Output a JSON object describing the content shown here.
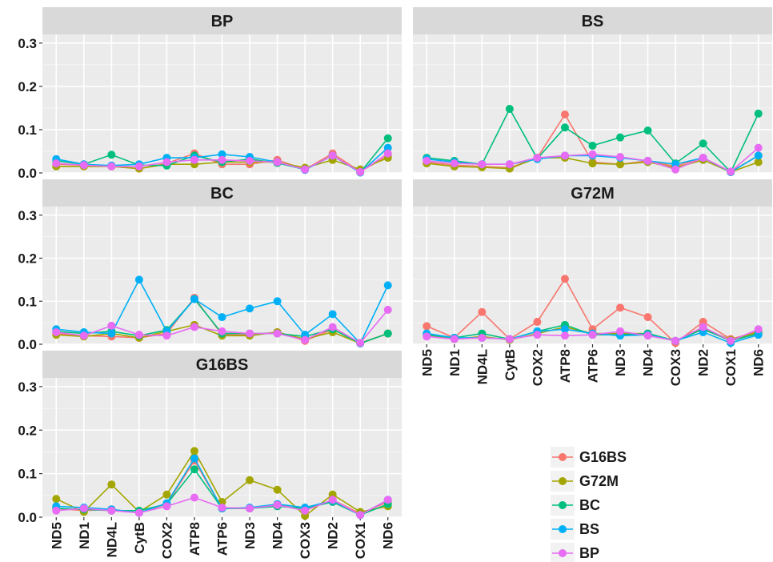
{
  "chart_data": {
    "type": "line",
    "layout": "facet-grid",
    "categories": [
      "ND5",
      "ND1",
      "ND4L",
      "CytB",
      "COX2",
      "ATP8",
      "ATP6",
      "ND3",
      "ND4",
      "COX3",
      "ND2",
      "COX1",
      "ND6"
    ],
    "ylim": [
      0,
      0.32
    ],
    "yticks": [
      0.0,
      0.1,
      0.2,
      0.3
    ],
    "ytick_labels": [
      "0.0",
      "0.1",
      "0.2",
      "0.3"
    ],
    "grid": true,
    "legend_position": "bottom-right",
    "legend": [
      {
        "name": "G16BS",
        "color": "#F8766D"
      },
      {
        "name": "G72M",
        "color": "#A3A500"
      },
      {
        "name": "BC",
        "color": "#00BF7D"
      },
      {
        "name": "BS",
        "color": "#00B0F6"
      },
      {
        "name": "BP",
        "color": "#E76BF3"
      }
    ],
    "panels": [
      {
        "title": "BP",
        "series": [
          {
            "name": "G16BS",
            "values": [
              0.02,
              0.018,
              0.015,
              0.01,
              0.022,
              0.045,
              0.02,
              0.02,
              0.03,
              0.008,
              0.045,
              0.003,
              0.04
            ]
          },
          {
            "name": "G72M",
            "values": [
              0.015,
              0.015,
              0.015,
              0.01,
              0.02,
              0.02,
              0.025,
              0.025,
              0.025,
              0.012,
              0.03,
              0.008,
              0.035
            ]
          },
          {
            "name": "BC",
            "values": [
              0.028,
              0.02,
              0.042,
              0.018,
              0.017,
              0.04,
              0.025,
              0.032,
              0.023,
              0.008,
              0.04,
              0.001,
              0.08
            ]
          },
          {
            "name": "BS",
            "values": [
              0.032,
              0.02,
              0.017,
              0.02,
              0.035,
              0.035,
              0.043,
              0.037,
              0.025,
              0.007,
              0.04,
              0.001,
              0.058
            ]
          },
          {
            "name": "BP",
            "values": [
              0.022,
              0.018,
              0.015,
              0.015,
              0.025,
              0.03,
              0.03,
              0.028,
              0.025,
              0.008,
              0.04,
              0.002,
              0.045
            ]
          }
        ]
      },
      {
        "title": "BS",
        "series": [
          {
            "name": "G16BS",
            "values": [
              0.025,
              0.018,
              0.015,
              0.012,
              0.035,
              0.135,
              0.025,
              0.02,
              0.028,
              0.015,
              0.035,
              0.003,
              0.04
            ]
          },
          {
            "name": "G72M",
            "values": [
              0.022,
              0.015,
              0.013,
              0.01,
              0.035,
              0.035,
              0.022,
              0.02,
              0.025,
              0.012,
              0.03,
              0.002,
              0.025
            ]
          },
          {
            "name": "BC",
            "values": [
              0.035,
              0.028,
              0.02,
              0.148,
              0.033,
              0.105,
              0.063,
              0.082,
              0.098,
              0.022,
              0.068,
              0.002,
              0.137
            ]
          },
          {
            "name": "BS",
            "values": [
              0.032,
              0.025,
              0.02,
              0.02,
              0.032,
              0.04,
              0.04,
              0.035,
              0.028,
              0.02,
              0.035,
              0.002,
              0.04
            ]
          },
          {
            "name": "BP",
            "values": [
              0.028,
              0.022,
              0.02,
              0.02,
              0.035,
              0.04,
              0.043,
              0.037,
              0.028,
              0.008,
              0.035,
              0.003,
              0.058
            ]
          }
        ]
      },
      {
        "title": "BC",
        "series": [
          {
            "name": "G16BS",
            "values": [
              0.025,
              0.02,
              0.018,
              0.015,
              0.025,
              0.108,
              0.022,
              0.022,
              0.028,
              0.008,
              0.035,
              0.003,
              0.025
            ]
          },
          {
            "name": "G72M",
            "values": [
              0.022,
              0.018,
              0.025,
              0.015,
              0.03,
              0.045,
              0.02,
              0.02,
              0.028,
              0.012,
              0.028,
              0.002,
              0.025
            ]
          },
          {
            "name": "BC",
            "values": [
              0.03,
              0.025,
              0.03,
              0.02,
              0.033,
              0.105,
              0.025,
              0.025,
              0.025,
              0.018,
              0.035,
              0.002,
              0.025
            ]
          },
          {
            "name": "BS",
            "values": [
              0.035,
              0.028,
              0.025,
              0.15,
              0.03,
              0.105,
              0.063,
              0.083,
              0.1,
              0.022,
              0.07,
              0.002,
              0.137
            ]
          },
          {
            "name": "BP",
            "values": [
              0.028,
              0.02,
              0.043,
              0.022,
              0.02,
              0.04,
              0.03,
              0.025,
              0.025,
              0.01,
              0.04,
              0.003,
              0.08
            ]
          }
        ]
      },
      {
        "title": "G72M",
        "series": [
          {
            "name": "G16BS",
            "values": [
              0.042,
              0.015,
              0.075,
              0.012,
              0.052,
              0.152,
              0.035,
              0.085,
              0.063,
              0.003,
              0.052,
              0.012,
              0.03
            ]
          },
          {
            "name": "G72M",
            "values": [
              0.022,
              0.012,
              0.018,
              0.01,
              0.025,
              0.04,
              0.025,
              0.025,
              0.025,
              0.008,
              0.038,
              0.01,
              0.028
            ]
          },
          {
            "name": "BC",
            "values": [
              0.022,
              0.015,
              0.025,
              0.012,
              0.03,
              0.045,
              0.022,
              0.022,
              0.025,
              0.008,
              0.035,
              0.008,
              0.025
            ]
          },
          {
            "name": "BS",
            "values": [
              0.025,
              0.015,
              0.015,
              0.012,
              0.03,
              0.035,
              0.025,
              0.02,
              0.022,
              0.008,
              0.028,
              0.003,
              0.022
            ]
          },
          {
            "name": "BP",
            "values": [
              0.018,
              0.012,
              0.015,
              0.012,
              0.022,
              0.02,
              0.022,
              0.03,
              0.02,
              0.008,
              0.04,
              0.008,
              0.035
            ]
          }
        ]
      },
      {
        "title": "G16BS",
        "series": [
          {
            "name": "G16BS",
            "values": [
              0.02,
              0.015,
              0.018,
              0.01,
              0.03,
              0.13,
              0.02,
              0.02,
              0.03,
              0.015,
              0.04,
              0.008,
              0.035
            ]
          },
          {
            "name": "G72M",
            "values": [
              0.042,
              0.012,
              0.075,
              0.012,
              0.052,
              0.152,
              0.035,
              0.085,
              0.063,
              0.003,
              0.052,
              0.012,
              0.025
            ]
          },
          {
            "name": "BC",
            "values": [
              0.02,
              0.018,
              0.015,
              0.015,
              0.03,
              0.11,
              0.02,
              0.02,
              0.025,
              0.02,
              0.035,
              0.005,
              0.03
            ]
          },
          {
            "name": "BS",
            "values": [
              0.025,
              0.022,
              0.018,
              0.01,
              0.032,
              0.135,
              0.02,
              0.022,
              0.03,
              0.022,
              0.038,
              0.005,
              0.04
            ]
          },
          {
            "name": "BP",
            "values": [
              0.015,
              0.02,
              0.015,
              0.01,
              0.025,
              0.045,
              0.022,
              0.02,
              0.028,
              0.015,
              0.04,
              0.005,
              0.04
            ]
          }
        ]
      }
    ]
  }
}
